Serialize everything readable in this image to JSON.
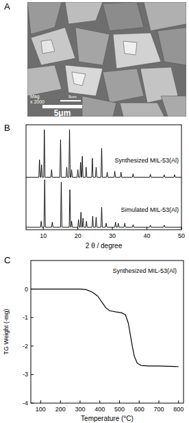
{
  "image": {
    "title": "A",
    "magnification": "Mag",
    "mag_value": "x 2000",
    "scale_bar_small": "5um",
    "scale_bar": "5μm"
  },
  "chart_data": [
    {
      "type": "line",
      "title": "B",
      "x_label": "2 θ / degree",
      "xlim": [
        5,
        50
      ],
      "xticks": [
        10,
        20,
        30,
        40,
        50
      ],
      "ylim": [
        0,
        2.1
      ],
      "tick_labels": "x",
      "color": "#000000",
      "series": [
        {
          "name": "Synthesized MIL-53(Al)",
          "x": [
            5,
            8.7,
            8.9,
            9.1,
            9.3,
            9.5,
            9.7,
            10.1,
            10.3,
            10.5,
            12.2,
            12.4,
            12.6,
            14.8,
            15.0,
            15.2,
            16.6,
            16.8,
            17.0,
            17.4,
            17.6,
            17.8,
            18.0,
            18.2,
            18.4,
            19.8,
            20.0,
            20.2,
            20.6,
            20.8,
            21.0,
            21.1,
            21.3,
            21.5,
            22.2,
            22.4,
            22.6,
            24.0,
            24.2,
            24.4,
            25.1,
            25.3,
            25.5,
            26.7,
            26.9,
            27.1,
            28.3,
            28.5,
            28.7,
            30.5,
            30.7,
            30.9,
            32.3,
            32.5,
            32.7,
            35.8,
            36.0,
            36.2,
            40.8,
            41.0,
            41.2,
            44.8,
            45.0,
            45.2,
            47.8,
            48.0,
            48.2,
            50
          ],
          "values": [
            1.05,
            1.05,
            1.4,
            1.05,
            1.05,
            1.3,
            1.05,
            1.05,
            2.0,
            1.05,
            1.05,
            1.2,
            1.05,
            1.05,
            1.8,
            1.05,
            1.05,
            1.25,
            1.05,
            1.05,
            2.0,
            1.05,
            1.05,
            1.2,
            1.05,
            1.05,
            1.2,
            1.05,
            1.05,
            1.35,
            1.05,
            1.05,
            1.47,
            1.05,
            1.05,
            1.25,
            1.05,
            1.05,
            1.43,
            1.05,
            1.05,
            1.25,
            1.05,
            1.05,
            1.63,
            1.05,
            1.05,
            1.15,
            1.05,
            1.05,
            1.17,
            1.05,
            1.05,
            1.15,
            1.05,
            1.05,
            1.12,
            1.05,
            1.05,
            1.11,
            1.05,
            1.05,
            1.1,
            1.05,
            1.05,
            1.1,
            1.05,
            1.05
          ]
        },
        {
          "name": "Simulated MIL-53(Al)",
          "x": [
            5,
            9.2,
            9.4,
            9.6,
            10.2,
            10.4,
            10.6,
            12.4,
            12.6,
            12.8,
            15.0,
            15.2,
            15.4,
            17.5,
            17.7,
            17.9,
            18.0,
            18.2,
            18.4,
            20.0,
            20.2,
            20.4,
            20.7,
            20.9,
            21.1,
            21.3,
            21.5,
            21.7,
            22.3,
            22.5,
            22.7,
            24.1,
            24.3,
            24.5,
            25.1,
            25.3,
            25.5,
            26.7,
            26.9,
            27.1,
            28.0,
            28.2,
            28.4,
            30.7,
            30.9,
            31.1,
            31.5,
            31.7,
            31.9,
            33.4,
            33.6,
            33.8,
            35.8,
            36.0,
            36.2,
            40.8,
            41.0,
            41.2,
            44.8,
            45.0,
            45.2,
            50
          ],
          "values": [
            0.05,
            0.05,
            0.17,
            0.05,
            0.05,
            1.0,
            0.05,
            0.05,
            0.15,
            0.05,
            0.05,
            0.95,
            0.05,
            0.05,
            0.8,
            0.05,
            0.05,
            0.17,
            0.05,
            0.05,
            0.2,
            0.05,
            0.05,
            0.35,
            0.05,
            0.05,
            0.23,
            0.05,
            0.05,
            0.17,
            0.05,
            0.05,
            0.27,
            0.05,
            0.05,
            0.25,
            0.05,
            0.05,
            0.45,
            0.05,
            0.05,
            0.13,
            0.05,
            0.05,
            0.15,
            0.05,
            0.05,
            0.13,
            0.05,
            0.05,
            0.13,
            0.05,
            0.05,
            0.1,
            0.05,
            0.05,
            0.09,
            0.05,
            0.05,
            0.09,
            0.05,
            0.05
          ]
        }
      ]
    },
    {
      "type": "line",
      "title": "C",
      "x_label": "Temperature (°C)",
      "y_label": "TG Weight (-mg)",
      "xlim": [
        50,
        825
      ],
      "xticks": [
        100,
        200,
        300,
        400,
        500,
        600,
        700,
        800
      ],
      "ylim": [
        -4,
        1
      ],
      "yticks": [
        0,
        -1,
        -2,
        -3,
        -4
      ],
      "color": "#000000",
      "x": [
        50,
        300,
        330,
        360,
        390,
        410,
        430,
        450,
        480,
        510,
        530,
        545,
        555,
        565,
        575,
        590,
        610,
        650,
        700,
        800
      ],
      "series": [
        {
          "name": "Synthesized MIL-53(Al)",
          "values": [
            0,
            0,
            -0.02,
            -0.1,
            -0.25,
            -0.45,
            -0.65,
            -0.76,
            -0.8,
            -0.83,
            -0.9,
            -1.2,
            -1.6,
            -2.0,
            -2.35,
            -2.6,
            -2.68,
            -2.7,
            -2.7,
            -2.72
          ]
        }
      ]
    }
  ]
}
